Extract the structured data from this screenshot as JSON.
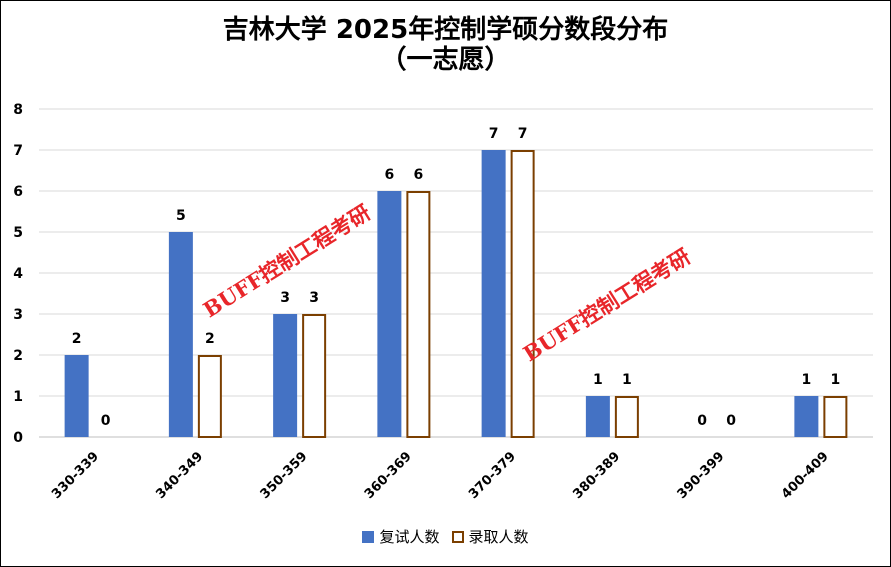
{
  "chart_data": {
    "type": "bar",
    "title_line1": "吉林大学 2025年控制学硕分数段分布",
    "title_line2": "（一志愿）",
    "categories": [
      "330-339",
      "340-349",
      "350-359",
      "360-369",
      "370-379",
      "380-389",
      "390-399",
      "400-409"
    ],
    "series": [
      {
        "name": "复试人数",
        "values": [
          2,
          5,
          3,
          6,
          7,
          1,
          0,
          1
        ],
        "color": "#4472C4",
        "style": "filled"
      },
      {
        "name": "录取人数",
        "values": [
          0,
          2,
          3,
          6,
          7,
          1,
          0,
          1
        ],
        "color": "#7B3F00",
        "style": "outline"
      }
    ],
    "yticks": [
      0,
      1,
      2,
      3,
      4,
      5,
      6,
      7,
      8
    ],
    "ylim": [
      0,
      8
    ],
    "grid": true,
    "legend_position": "bottom",
    "watermarks": [
      "BUFF控制工程考研",
      "BUFF控制工程考研"
    ]
  }
}
